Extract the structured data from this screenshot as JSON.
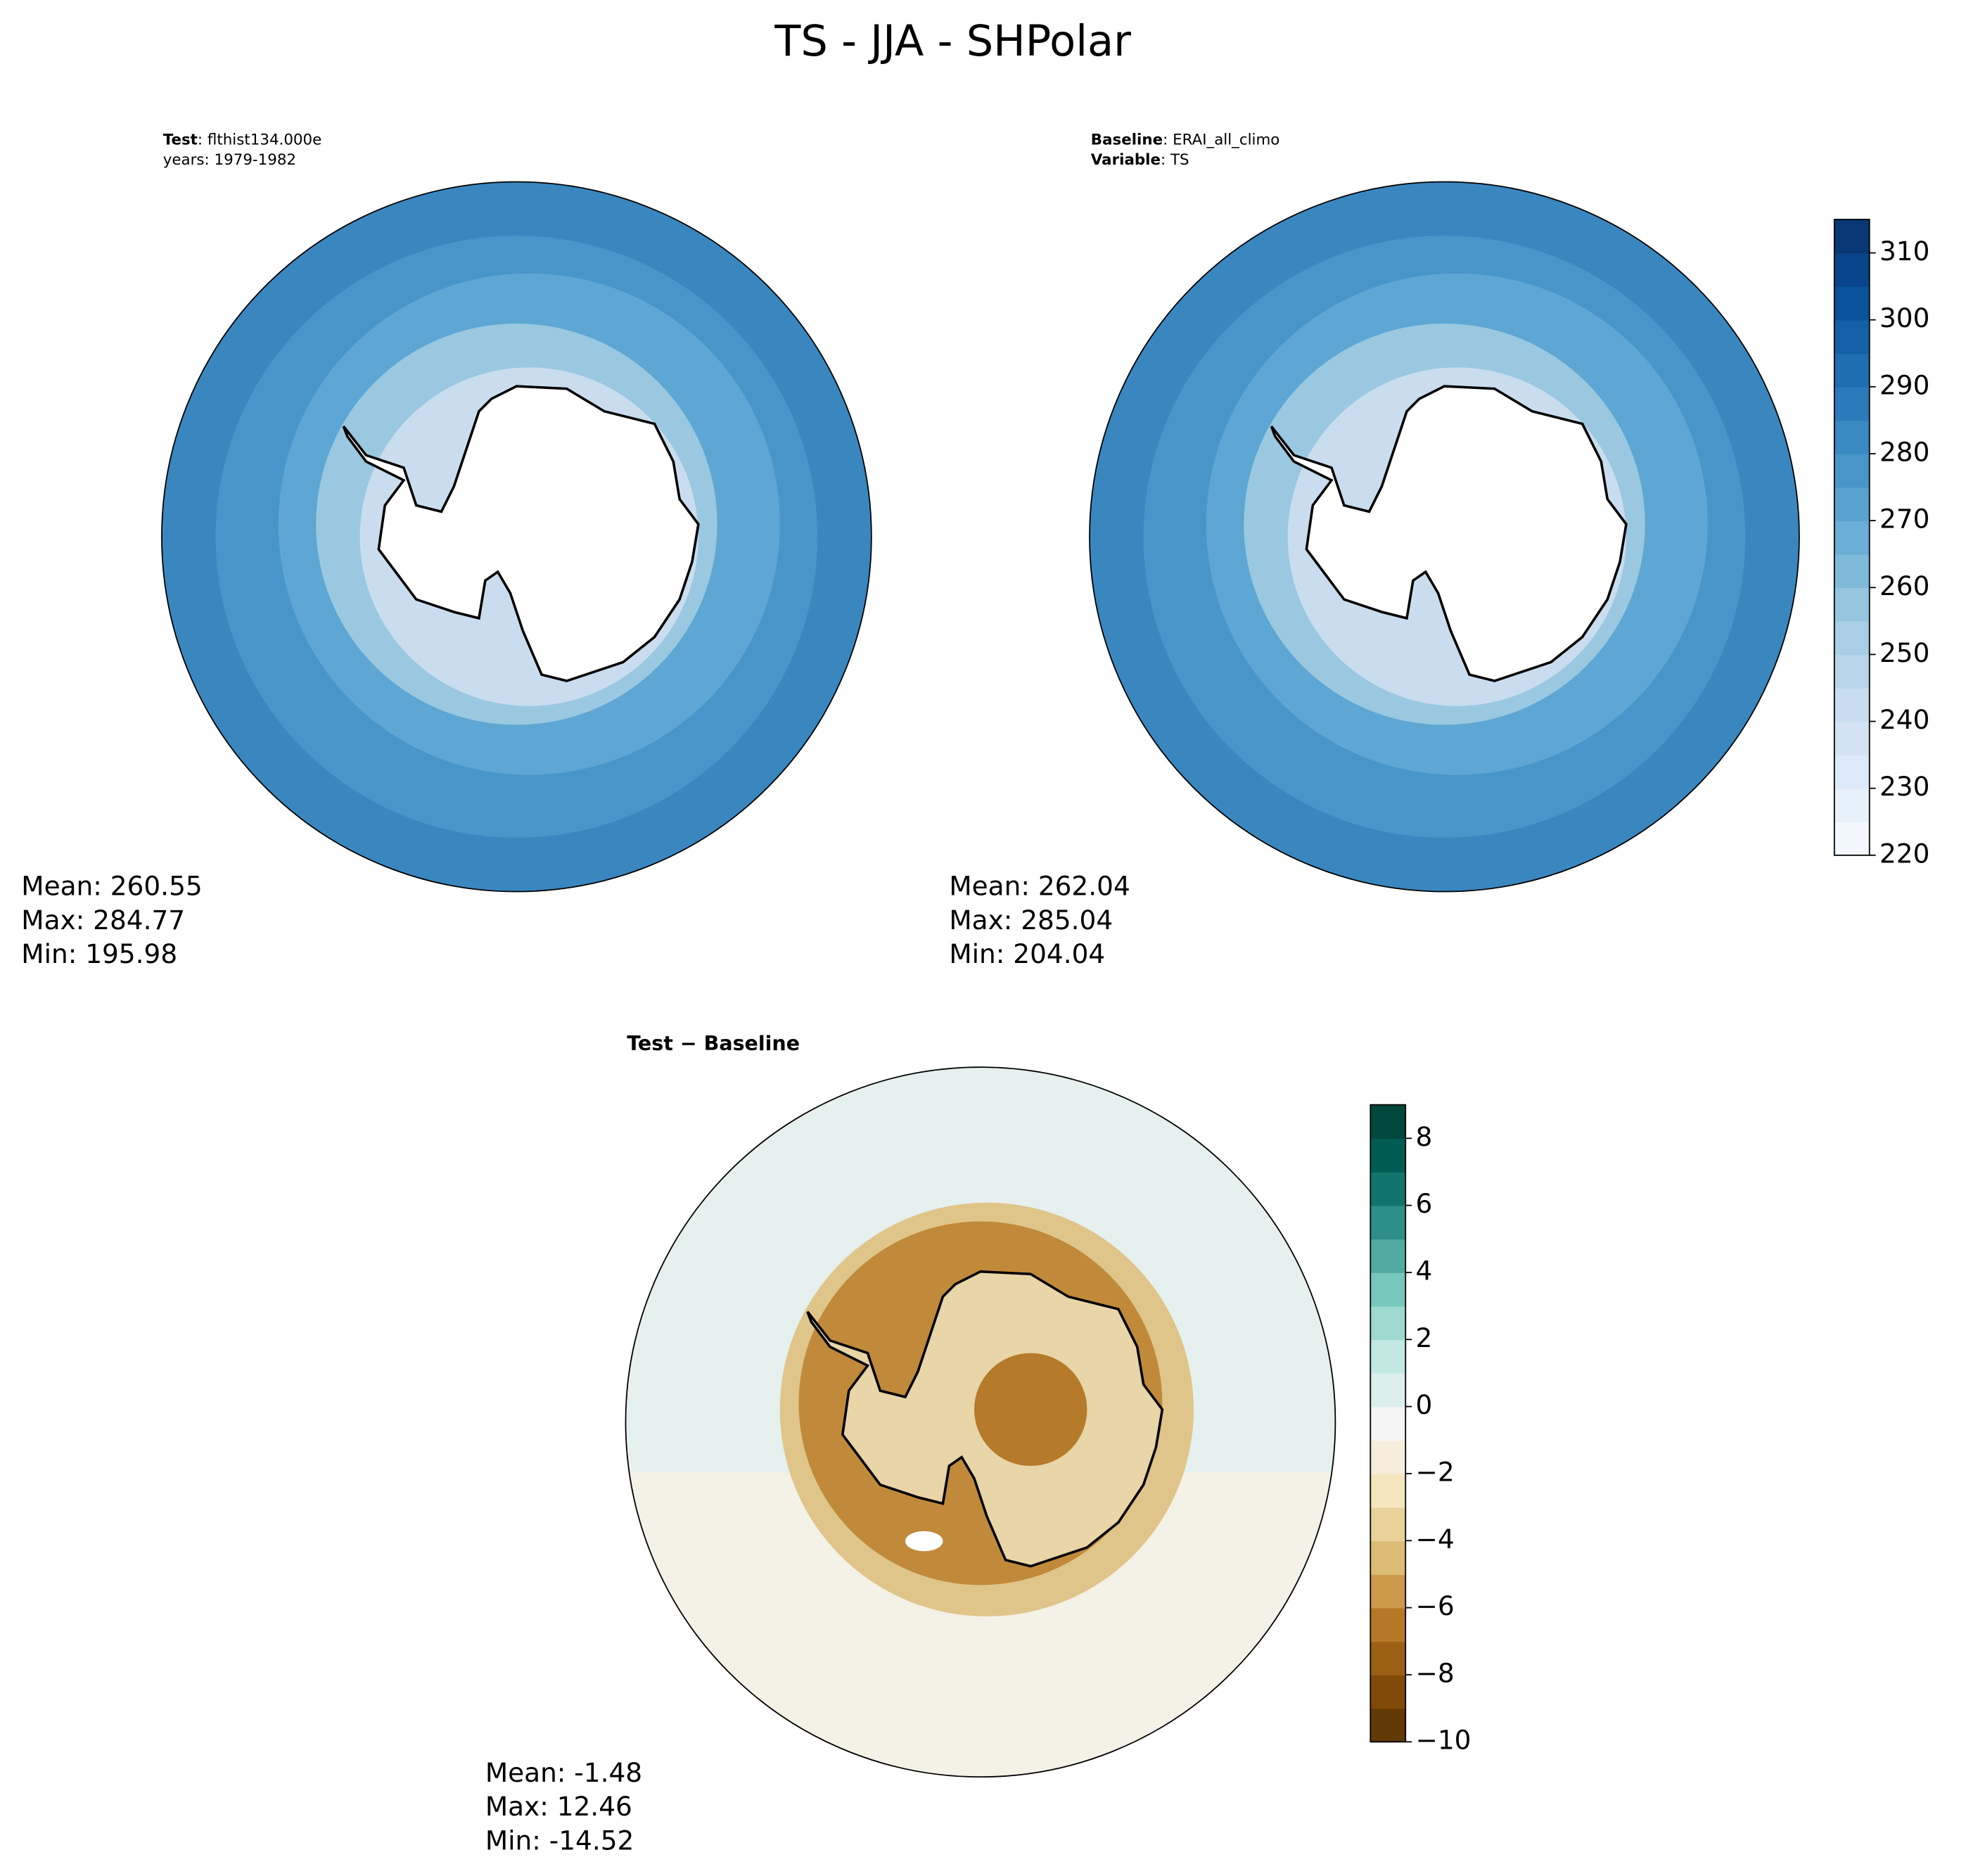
{
  "title": "TS - JJA - SHPolar",
  "panels": [
    {
      "header": [
        {
          "label": "Test",
          "text": ": flthist134.000e"
        },
        {
          "label": "",
          "text": "years: 1979-1982"
        }
      ],
      "stats": [
        "Mean: 260.55",
        "Max: 284.77",
        "Min: 195.98"
      ]
    },
    {
      "header": [
        {
          "label": "Baseline",
          "text": ": ERAI_all_climo"
        },
        {
          "label": "Variable",
          "text": ": TS"
        }
      ],
      "stats": [
        "Mean: 262.04",
        "Max: 285.04",
        "Min: 204.04"
      ]
    },
    {
      "header": [
        {
          "label": "Test − Baseline",
          "text": ""
        }
      ],
      "stats": [
        "Mean: -1.48",
        "Max: 12.46",
        "Min: -14.52"
      ]
    }
  ],
  "colorbars": [
    {
      "lim": [
        220,
        315
      ],
      "step": 5,
      "ticks": [
        220,
        230,
        240,
        250,
        260,
        270,
        280,
        290,
        300,
        310
      ],
      "cmap": [
        "#f7fbff",
        "#deebf7",
        "#c6dbef",
        "#9ecae1",
        "#6baed6",
        "#4292c6",
        "#2171b5",
        "#08519c",
        "#08306b"
      ]
    },
    {
      "lim": [
        -10,
        9
      ],
      "step": 1,
      "ticks": [
        {
          "value": -10,
          "label": "−10"
        },
        {
          "value": -8,
          "label": "−8"
        },
        {
          "value": -6,
          "label": "−6"
        },
        {
          "value": -4,
          "label": "−4"
        },
        {
          "value": -2,
          "label": "−2"
        },
        0,
        2,
        4,
        6,
        8
      ],
      "cmap": [
        "#543005",
        "#8c510a",
        "#bf812d",
        "#dfc27d",
        "#f6e8c3",
        "#f5f5f5",
        "#c7eae5",
        "#80cdc1",
        "#35978f",
        "#01665e",
        "#003c30"
      ]
    }
  ]
}
